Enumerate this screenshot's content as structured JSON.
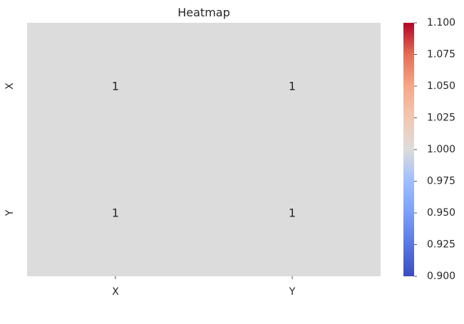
{
  "chart_data": {
    "type": "heatmap",
    "title": "Heatmap",
    "x_labels": [
      "X",
      "Y"
    ],
    "y_labels": [
      "X",
      "Y"
    ],
    "values": [
      [
        1,
        1
      ],
      [
        1,
        1
      ]
    ],
    "annotations": [
      [
        "1",
        "1"
      ],
      [
        "1",
        "1"
      ]
    ],
    "colormap": "coolwarm",
    "vmin": 0.9,
    "vmax": 1.1,
    "colorbar_ticks": [
      "0.900",
      "0.925",
      "0.950",
      "0.975",
      "1.000",
      "1.025",
      "1.050",
      "1.075",
      "1.100"
    ],
    "cell_color": "#dddcdc",
    "grid_line_color": "#ffffff"
  }
}
